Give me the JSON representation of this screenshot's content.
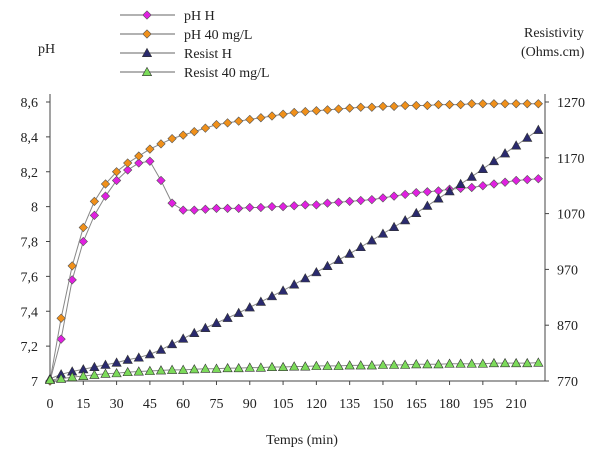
{
  "chart_data": {
    "type": "line",
    "title": "",
    "xlabel": "Temps (min)",
    "ylabel_left": "pH",
    "ylabel_right": [
      "Resistivity",
      "(Ohms.cm)"
    ],
    "xlim": [
      0,
      220
    ],
    "ylim_left": [
      7,
      8.6
    ],
    "ylim_right": [
      770,
      1270
    ],
    "x_ticks": [
      0,
      15,
      30,
      45,
      60,
      75,
      90,
      105,
      120,
      135,
      150,
      165,
      180,
      195,
      210
    ],
    "y_left_ticks": [
      "7",
      "7,2",
      "7,4",
      "7,6",
      "7,8",
      "8",
      "8,2",
      "8,4",
      "8,6"
    ],
    "y_right_ticks": [
      "770",
      "870",
      "970",
      "1070",
      "1170",
      "1270"
    ],
    "grid": false,
    "legend_position": "top-center",
    "series": [
      {
        "name": "pH H",
        "axis": "left",
        "color": "#e020e0",
        "marker": "diamond",
        "x": [
          0,
          5,
          10,
          15,
          20,
          25,
          30,
          35,
          40,
          45,
          50,
          55,
          60,
          65,
          70,
          75,
          80,
          85,
          90,
          95,
          100,
          105,
          110,
          115,
          120,
          125,
          130,
          135,
          140,
          145,
          150,
          155,
          160,
          165,
          170,
          175,
          180,
          185,
          190,
          195,
          200,
          205,
          210,
          215,
          220
        ],
        "y": [
          7.0,
          7.24,
          7.58,
          7.8,
          7.95,
          8.06,
          8.15,
          8.21,
          8.25,
          8.26,
          8.15,
          8.02,
          7.98,
          7.98,
          7.985,
          7.99,
          7.99,
          7.99,
          7.995,
          7.995,
          8.0,
          8.0,
          8.005,
          8.01,
          8.01,
          8.02,
          8.025,
          8.03,
          8.035,
          8.04,
          8.05,
          8.06,
          8.07,
          8.08,
          8.085,
          8.09,
          8.1,
          8.105,
          8.11,
          8.12,
          8.13,
          8.14,
          8.15,
          8.155,
          8.16
        ]
      },
      {
        "name": "pH 40 mg/L",
        "axis": "left",
        "color": "#f0901a",
        "marker": "diamond",
        "x": [
          0,
          5,
          10,
          15,
          20,
          25,
          30,
          35,
          40,
          45,
          50,
          55,
          60,
          65,
          70,
          75,
          80,
          85,
          90,
          95,
          100,
          105,
          110,
          115,
          120,
          125,
          130,
          135,
          140,
          145,
          150,
          155,
          160,
          165,
          170,
          175,
          180,
          185,
          190,
          195,
          200,
          205,
          210,
          215,
          220
        ],
        "y": [
          7.0,
          7.36,
          7.66,
          7.88,
          8.03,
          8.13,
          8.2,
          8.25,
          8.29,
          8.33,
          8.36,
          8.39,
          8.41,
          8.43,
          8.45,
          8.47,
          8.48,
          8.49,
          8.5,
          8.51,
          8.52,
          8.53,
          8.54,
          8.545,
          8.55,
          8.555,
          8.56,
          8.565,
          8.57,
          8.57,
          8.575,
          8.575,
          8.58,
          8.58,
          8.58,
          8.585,
          8.585,
          8.585,
          8.59,
          8.59,
          8.59,
          8.59,
          8.59,
          8.59,
          8.59
        ]
      },
      {
        "name": "Resist H",
        "axis": "right",
        "color": "#2a2a6e",
        "marker": "triangle",
        "x": [
          0,
          5,
          10,
          15,
          20,
          25,
          30,
          35,
          40,
          45,
          50,
          55,
          60,
          65,
          70,
          75,
          80,
          85,
          90,
          95,
          100,
          105,
          110,
          115,
          120,
          125,
          130,
          135,
          140,
          145,
          150,
          155,
          160,
          165,
          170,
          175,
          180,
          185,
          190,
          195,
          200,
          205,
          210,
          215,
          220
        ],
        "y": [
          774,
          782,
          787,
          791,
          795,
          799,
          803,
          808,
          812,
          818,
          826,
          836,
          846,
          856,
          865,
          874,
          883,
          892,
          902,
          912,
          922,
          932,
          943,
          954,
          965,
          976,
          987,
          998,
          1010,
          1022,
          1034,
          1046,
          1058,
          1071,
          1084,
          1097,
          1110,
          1123,
          1136,
          1150,
          1164,
          1178,
          1192,
          1206,
          1220
        ]
      },
      {
        "name": "Resist 40 mg/L",
        "axis": "right",
        "color": "#7cdb5a",
        "marker": "triangle",
        "x": [
          0,
          5,
          10,
          15,
          20,
          25,
          30,
          35,
          40,
          45,
          50,
          55,
          60,
          65,
          70,
          75,
          80,
          85,
          90,
          95,
          100,
          105,
          110,
          115,
          120,
          125,
          130,
          135,
          140,
          145,
          150,
          155,
          160,
          165,
          170,
          175,
          180,
          185,
          190,
          195,
          200,
          205,
          210,
          215,
          220
        ],
        "y": [
          772,
          774,
          777,
          779,
          781,
          783,
          784,
          786,
          787,
          788,
          789,
          790,
          790,
          791,
          792,
          792,
          793,
          793,
          794,
          794,
          795,
          795,
          796,
          796,
          797,
          797,
          797,
          798,
          798,
          798,
          799,
          799,
          799,
          800,
          800,
          800,
          801,
          801,
          801,
          801,
          802,
          802,
          802,
          802,
          803
        ]
      }
    ]
  }
}
